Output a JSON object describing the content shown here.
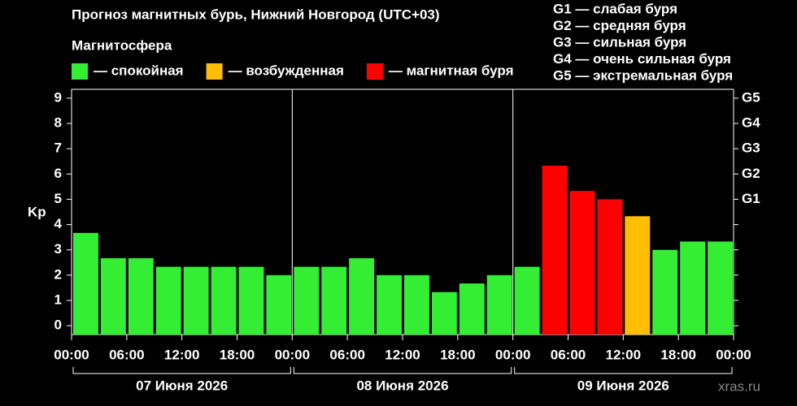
{
  "chart_data": {
    "type": "bar",
    "title": "Прогноз магнитных бурь, Нижний Новгород (UTC+03)",
    "legend_title": "Магнитосфера",
    "legend": [
      {
        "label": "— спокойная",
        "color": "#33ee33"
      },
      {
        "label": "— возбужденная",
        "color": "#ffbf00"
      },
      {
        "label": "— магнитная буря",
        "color": "#ff0000"
      }
    ],
    "storm_levels": [
      "G1 — слабая буря",
      "G2 — средняя буря",
      "G3 — сильная буря",
      "G4 — очень сильная буря",
      "G5 — экстремальная буря"
    ],
    "y_label": "Kp",
    "watermark": "xras.ru",
    "x": [
      0,
      3,
      6,
      9,
      12,
      15,
      18,
      21,
      24,
      27,
      30,
      33,
      36,
      39,
      42,
      45,
      48,
      51,
      54,
      57,
      60,
      63,
      66,
      69
    ],
    "series": [
      {
        "values": [
          3.67,
          2.67,
          2.67,
          2.33,
          2.33,
          2.33,
          2.33,
          2.0,
          2.33,
          2.33,
          2.67,
          2.0,
          2.0,
          1.33,
          1.67,
          2.0,
          2.33,
          6.33,
          5.33,
          5.0,
          4.33,
          3.0,
          3.33,
          3.33
        ],
        "colors": [
          "#33ee33",
          "#33ee33",
          "#33ee33",
          "#33ee33",
          "#33ee33",
          "#33ee33",
          "#33ee33",
          "#33ee33",
          "#33ee33",
          "#33ee33",
          "#33ee33",
          "#33ee33",
          "#33ee33",
          "#33ee33",
          "#33ee33",
          "#33ee33",
          "#33ee33",
          "#ff0000",
          "#ff0000",
          "#ff0000",
          "#ffbf00",
          "#33ee33",
          "#33ee33",
          "#33ee33"
        ]
      }
    ],
    "xlim": [
      0,
      72
    ],
    "xticks": [
      {
        "value": 0,
        "label": "00:00"
      },
      {
        "value": 6,
        "label": "06:00"
      },
      {
        "value": 12,
        "label": "12:00"
      },
      {
        "value": 18,
        "label": "18:00"
      },
      {
        "value": 24,
        "label": "00:00"
      },
      {
        "value": 30,
        "label": "06:00"
      },
      {
        "value": 36,
        "label": "12:00"
      },
      {
        "value": 42,
        "label": "18:00"
      },
      {
        "value": 48,
        "label": "00:00"
      },
      {
        "value": 54,
        "label": "06:00"
      },
      {
        "value": 60,
        "label": "12:00"
      },
      {
        "value": 66,
        "label": "18:00"
      },
      {
        "value": 72,
        "label": "00:00"
      }
    ],
    "day_separators": [
      24,
      48
    ],
    "groups": [
      {
        "label": "07 Июня 2026",
        "start": 0,
        "end": 24
      },
      {
        "label": "08 Июня 2026",
        "start": 24,
        "end": 48
      },
      {
        "label": "09 Июня 2026",
        "start": 48,
        "end": 72
      }
    ],
    "ylim": [
      -0.35,
      9.35
    ],
    "yticks": [
      0,
      1,
      2,
      3,
      4,
      5,
      6,
      7,
      8,
      9
    ],
    "y2lim": [
      -0.35,
      9.35
    ],
    "y2ticks": [
      {
        "value": 5,
        "label": "G1"
      },
      {
        "value": 6,
        "label": "G2"
      },
      {
        "value": 7,
        "label": "G3"
      },
      {
        "value": 8,
        "label": "G4"
      },
      {
        "value": 9,
        "label": "G5"
      }
    ]
  }
}
